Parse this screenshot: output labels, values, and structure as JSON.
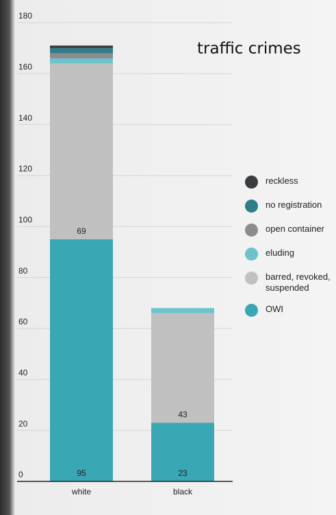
{
  "chart_data": {
    "type": "stacked-bar",
    "title": "traffic crimes",
    "categories": [
      "white",
      "black"
    ],
    "series": [
      {
        "name": "OWI",
        "color": "#3aa7b4",
        "values": [
          95,
          23
        ],
        "show_labels": true
      },
      {
        "name": "barred, revoked, suspended",
        "color": "#c0c0c0",
        "values": [
          69,
          43
        ],
        "show_labels": true
      },
      {
        "name": "eluding",
        "color": "#6cc3cc",
        "values": [
          2,
          2
        ]
      },
      {
        "name": "open container",
        "color": "#8c8c8c",
        "values": [
          2,
          0
        ]
      },
      {
        "name": "no registration",
        "color": "#2e7d88",
        "values": [
          2,
          0
        ]
      },
      {
        "name": "reckless",
        "color": "#3a3d40",
        "values": [
          1,
          0
        ]
      }
    ],
    "ylim": [
      0,
      180
    ],
    "yticks": [
      0,
      20,
      40,
      60,
      80,
      100,
      120,
      140,
      160,
      180
    ],
    "grid": true
  }
}
